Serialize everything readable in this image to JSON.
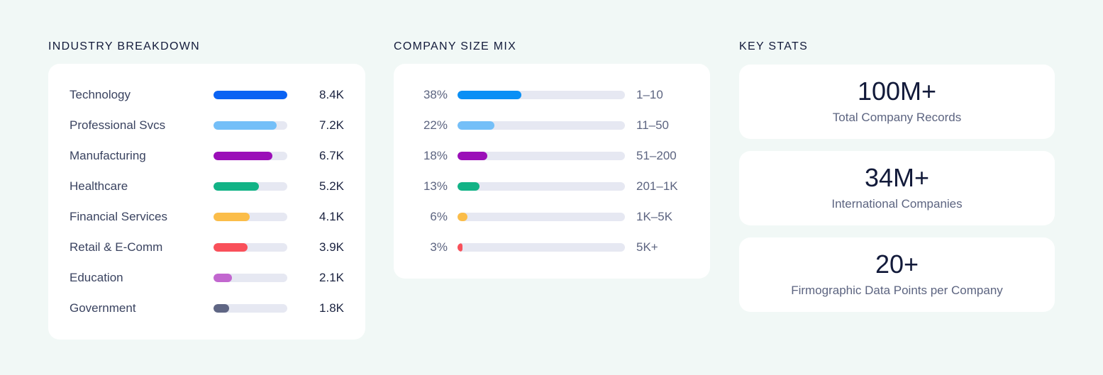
{
  "industry": {
    "title": "INDUSTRY BREAKDOWN",
    "rows": [
      {
        "label": "Technology",
        "value": "8.4K",
        "fraction": 1.0,
        "color": "#0b63f3"
      },
      {
        "label": "Professional Svcs",
        "value": "7.2K",
        "fraction": 0.857,
        "color": "#74bff8"
      },
      {
        "label": "Manufacturing",
        "value": "6.7K",
        "fraction": 0.798,
        "color": "#9b0fb8"
      },
      {
        "label": "Healthcare",
        "value": "5.2K",
        "fraction": 0.619,
        "color": "#12b386"
      },
      {
        "label": "Financial Services",
        "value": "4.1K",
        "fraction": 0.488,
        "color": "#fbbd49"
      },
      {
        "label": "Retail & E-Comm",
        "value": "3.9K",
        "fraction": 0.464,
        "color": "#f9505a"
      },
      {
        "label": "Education",
        "value": "2.1K",
        "fraction": 0.25,
        "color": "#c267cf"
      },
      {
        "label": "Government",
        "value": "1.8K",
        "fraction": 0.214,
        "color": "#5f6684"
      }
    ]
  },
  "company_size": {
    "title": "COMPANY SIZE MIX",
    "rows": [
      {
        "percent": "38%",
        "label": "1–10",
        "fraction": 0.38,
        "color": "#0a8ff5"
      },
      {
        "percent": "22%",
        "label": "11–50",
        "fraction": 0.22,
        "color": "#74bff8"
      },
      {
        "percent": "18%",
        "label": "51–200",
        "fraction": 0.18,
        "color": "#9b0fb8"
      },
      {
        "percent": "13%",
        "label": "201–1K",
        "fraction": 0.13,
        "color": "#12b386"
      },
      {
        "percent": "6%",
        "label": "1K–5K",
        "fraction": 0.06,
        "color": "#fbbd49"
      },
      {
        "percent": "3%",
        "label": "5K+",
        "fraction": 0.03,
        "color": "#f9505a"
      }
    ]
  },
  "key_stats": {
    "title": "KEY STATS",
    "items": [
      {
        "value": "100M+",
        "label": "Total Company Records"
      },
      {
        "value": "34M+",
        "label": "International Companies"
      },
      {
        "value": "20+",
        "label": "Firmographic Data Points per Company"
      }
    ]
  }
}
